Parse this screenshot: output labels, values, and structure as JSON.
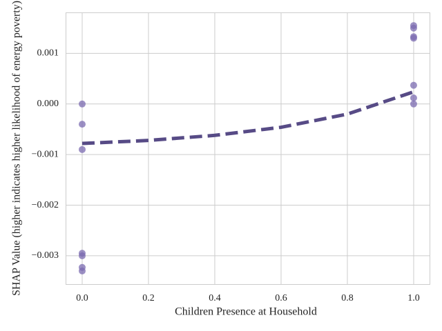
{
  "chart_data": {
    "type": "scatter",
    "x_label": "Children Presence at Household",
    "y_label": "SHAP Value (higher indicates higher likelihood of energy poverty)",
    "x": [
      0,
      0,
      0,
      0,
      0,
      0,
      0,
      1,
      1,
      1,
      1,
      1,
      1,
      1
    ],
    "values": [
      0.0,
      -0.0004,
      -0.0009,
      -0.00295,
      -0.003,
      -0.00323,
      -0.0033,
      0.00155,
      0.0015,
      0.00133,
      0.0013,
      0.00037,
      0.00012,
      0.0
    ],
    "color": "#7b6bb0",
    "trend_line": {
      "x": [
        0,
        0.2,
        0.4,
        0.6,
        0.8,
        1.0
      ],
      "values": [
        -0.00078,
        -0.00072,
        -0.00062,
        -0.00046,
        -0.0002,
        0.00024
      ],
      "color": "#574b86",
      "style": "dashed"
    },
    "xlim": [
      -0.05,
      1.048
    ],
    "ylim": [
      -0.00356,
      0.00181
    ],
    "xticks": [
      {
        "value": 0,
        "label": "0.0"
      },
      0.2,
      0.4,
      0.6,
      0.8,
      {
        "value": 1,
        "label": "1.0"
      }
    ],
    "yticks": [
      {
        "value": -0.003,
        "label": "−0.003"
      },
      {
        "value": -0.002,
        "label": "−0.002"
      },
      {
        "value": -0.001,
        "label": "−0.001"
      },
      {
        "value": 0,
        "label": "0.000"
      },
      0.001
    ],
    "grid": true
  }
}
